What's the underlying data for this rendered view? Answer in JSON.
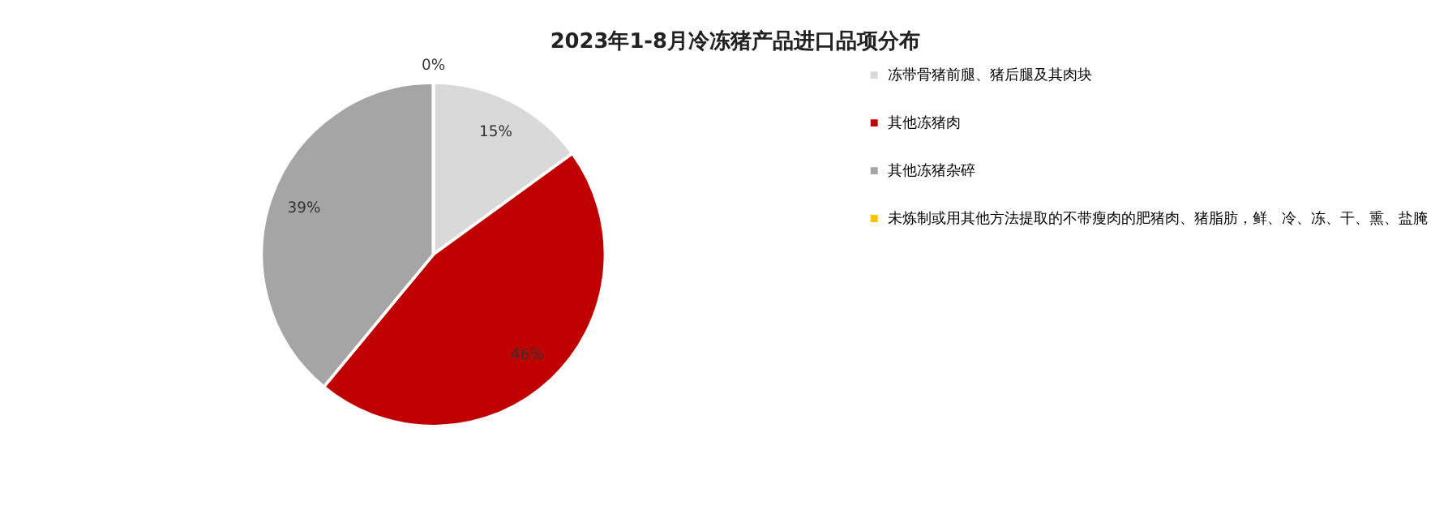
{
  "chart_data": {
    "type": "pie",
    "title": "2023年1-8月冷冻猪产品进口品项分布",
    "categories": [
      "冻带骨猪前腿、猪后腿及其肉块",
      "其他冻猪肉",
      "其他冻猪杂碎",
      "未炼制或用其他方法提取的不带瘦肉的肥猪肉、猪脂肪，鲜、冷、冻、干、熏、盐腌"
    ],
    "values": [
      15,
      46,
      39,
      0
    ],
    "colors": [
      "#d9d9d9",
      "#c00000",
      "#a5a5a5",
      "#ffc000"
    ],
    "value_labels": [
      "15%",
      "46%",
      "39%",
      "0%"
    ],
    "legend": "right"
  }
}
